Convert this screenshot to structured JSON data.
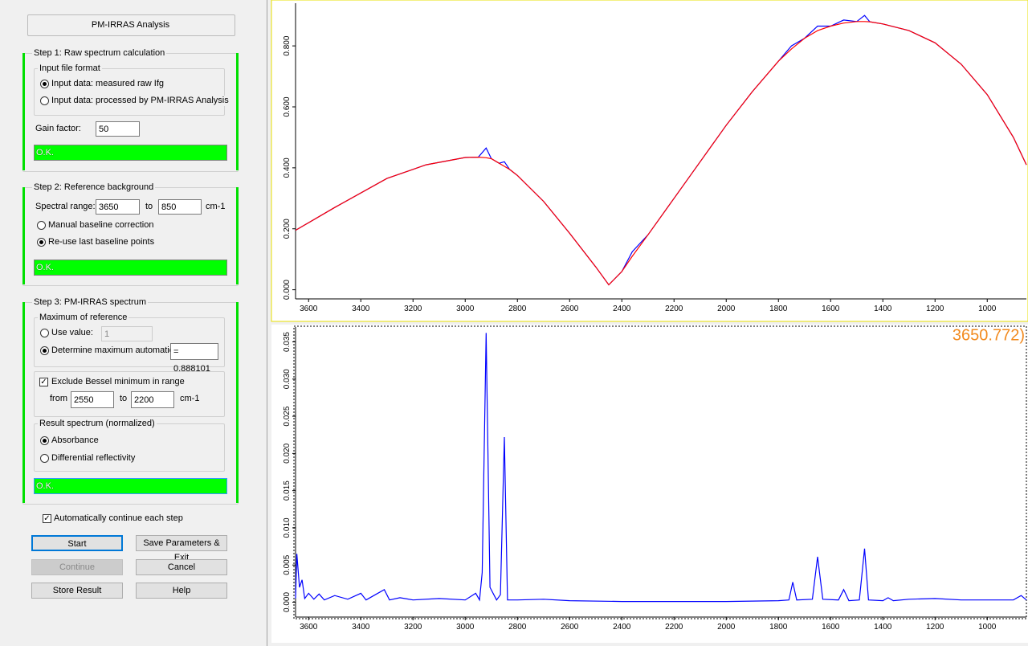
{
  "dialog": {
    "title": "PM-IRRAS Analysis",
    "step1": {
      "title": "Step 1: Raw spectrum calculation",
      "group": "Input file format",
      "options": [
        "Input data: measured raw Ifg",
        "Input data: processed by PM-IRRAS Analysis"
      ],
      "gain_label": "Gain factor:",
      "gain": "50",
      "status": "O.K."
    },
    "step2": {
      "title": "Step 2: Reference background",
      "range_label": "Spectral range:",
      "from": "3650",
      "to_label": "to",
      "to": "850",
      "unit": "cm-1",
      "options": [
        "Manual baseline correction",
        "Re-use last baseline points"
      ],
      "status": "O.K."
    },
    "step3": {
      "title": "Step 3: PM-IRRAS spectrum",
      "max_group": "Maximum of reference",
      "use_value_label": "Use value:",
      "use_value": "1",
      "auto_label": "Determine maximum automatically",
      "auto_value": "= 0.888101",
      "exclude_label": "Exclude Bessel minimum in range",
      "from_label": "from",
      "from": "2550",
      "to_label": "to",
      "to": "2200",
      "unit": "cm-1",
      "result_group": "Result spectrum (normalized)",
      "options": [
        "Absorbance",
        "Differential reflectivity"
      ],
      "status": "O.K."
    },
    "auto_continue": "Automatically continue each step",
    "buttons": [
      "Start",
      "Save Parameters & Exit",
      "Continue",
      "Cancel",
      "Store Result",
      "Help"
    ]
  },
  "chart_data": [
    {
      "type": "line",
      "xlim": [
        3650,
        850
      ],
      "ylim": [
        -0.03,
        0.94
      ],
      "xticks": [
        3600,
        3400,
        3200,
        3000,
        2800,
        2600,
        2400,
        2200,
        2000,
        1800,
        1600,
        1400,
        1200,
        1000
      ],
      "yticks": [
        {
          "value": 0,
          "label": "0.000"
        },
        {
          "value": 0.2,
          "label": "0.200"
        },
        {
          "value": 0.4,
          "label": "0.400"
        },
        {
          "value": 0.6,
          "label": "0.600"
        },
        {
          "value": 0.8,
          "label": "0.800"
        }
      ],
      "x": [
        3650,
        3500,
        3300,
        3150,
        3000,
        2950,
        2920,
        2900,
        2870,
        2850,
        2830,
        2800,
        2700,
        2600,
        2500,
        2450,
        2400,
        2360,
        2300,
        2200,
        2100,
        2000,
        1900,
        1800,
        1750,
        1700,
        1650,
        1600,
        1550,
        1500,
        1470,
        1450,
        1400,
        1300,
        1200,
        1100,
        1000,
        900,
        850
      ],
      "series": [
        {
          "color": "#0000ff",
          "values": [
            0.195,
            0.27,
            0.365,
            0.41,
            0.434,
            0.435,
            0.465,
            0.43,
            0.415,
            0.42,
            0.395,
            0.375,
            0.29,
            0.185,
            0.075,
            0.016,
            0.06,
            0.125,
            0.18,
            0.3,
            0.42,
            0.54,
            0.65,
            0.75,
            0.8,
            0.825,
            0.865,
            0.865,
            0.885,
            0.88,
            0.9,
            0.879,
            0.872,
            0.85,
            0.81,
            0.74,
            0.64,
            0.5,
            0.41
          ]
        },
        {
          "color": "#ff0000",
          "values": [
            0.195,
            0.27,
            0.365,
            0.41,
            0.434,
            0.435,
            0.433,
            0.43,
            0.415,
            0.405,
            0.395,
            0.375,
            0.29,
            0.185,
            0.075,
            0.016,
            0.06,
            0.11,
            0.18,
            0.3,
            0.42,
            0.54,
            0.65,
            0.75,
            0.79,
            0.825,
            0.85,
            0.865,
            0.875,
            0.88,
            0.88,
            0.879,
            0.872,
            0.85,
            0.81,
            0.74,
            0.64,
            0.5,
            0.41
          ]
        }
      ]
    },
    {
      "type": "line",
      "xlim": [
        3650,
        850
      ],
      "ylim": [
        -0.002,
        0.037
      ],
      "annotation": "3650.772)",
      "xticks": [
        3600,
        3400,
        3200,
        3000,
        2800,
        2600,
        2400,
        2200,
        2000,
        1800,
        1600,
        1400,
        1200,
        1000
      ],
      "yticks": [
        {
          "value": 0,
          "label": "0.000"
        },
        {
          "value": 0.005,
          "label": "0.005"
        },
        {
          "value": 0.01,
          "label": "0.010"
        },
        {
          "value": 0.015,
          "label": "0.015"
        },
        {
          "value": 0.02,
          "label": "0.020"
        },
        {
          "value": 0.025,
          "label": "0.025"
        },
        {
          "value": 0.03,
          "label": "0.030"
        },
        {
          "value": 0.035,
          "label": "0.035"
        }
      ],
      "x": [
        3650,
        3645,
        3635,
        3625,
        3615,
        3600,
        3580,
        3560,
        3540,
        3500,
        3450,
        3400,
        3380,
        3340,
        3310,
        3290,
        3250,
        3200,
        3100,
        3000,
        2960,
        2945,
        2935,
        2920,
        2905,
        2880,
        2865,
        2850,
        2838,
        2800,
        2700,
        2600,
        2400,
        2200,
        2000,
        1800,
        1760,
        1745,
        1730,
        1670,
        1650,
        1630,
        1570,
        1550,
        1530,
        1490,
        1470,
        1455,
        1400,
        1380,
        1360,
        1300,
        1200,
        1100,
        1000,
        900,
        870,
        850
      ],
      "series": [
        {
          "color": "#0000ff",
          "values": [
            0.0005,
            0.0065,
            0.002,
            0.003,
            0.0005,
            0.0012,
            0.0004,
            0.0011,
            0.0003,
            0.0009,
            0.0004,
            0.0012,
            0.0003,
            0.0011,
            0.0017,
            0.0003,
            0.0006,
            0.0003,
            0.0005,
            0.0003,
            0.0012,
            0.0003,
            0.004,
            0.0362,
            0.002,
            0.0003,
            0.001,
            0.0222,
            0.0003,
            0.0003,
            0.0004,
            0.0002,
            0.0001,
            0.0001,
            0.0001,
            0.0002,
            0.0003,
            0.0027,
            0.0003,
            0.0004,
            0.0061,
            0.0004,
            0.0003,
            0.0017,
            0.0002,
            0.0003,
            0.0072,
            0.0003,
            0.0002,
            0.0006,
            0.0002,
            0.0004,
            0.0005,
            0.0003,
            0.0003,
            0.0003,
            0.0009,
            0.0003
          ]
        }
      ]
    }
  ]
}
